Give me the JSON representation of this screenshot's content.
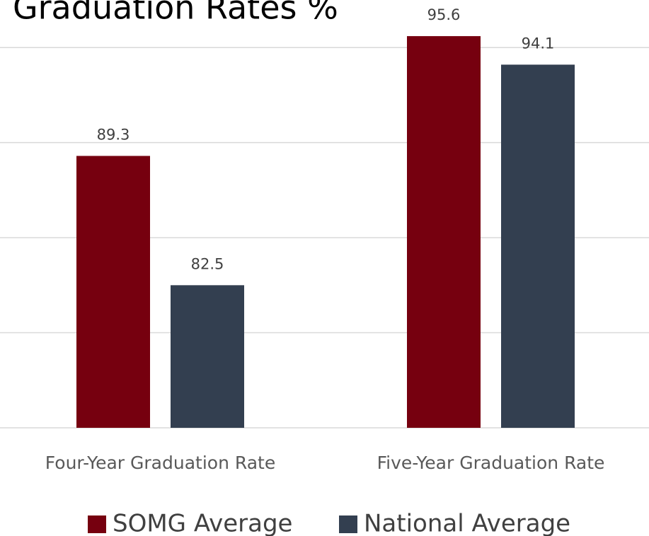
{
  "chart_data": {
    "type": "bar",
    "title": "Graduation Rates %",
    "categories": [
      "Four-Year Graduation Rate",
      "Five-Year Graduation Rate"
    ],
    "series": [
      {
        "name": "SOMG Average",
        "color": "#76000f",
        "values": [
          89.3,
          95.6
        ]
      },
      {
        "name": "National Average",
        "color": "#333f50",
        "values": [
          82.5,
          94.1
        ]
      }
    ],
    "ylim": [
      75,
      97.5
    ],
    "yticks": [
      75,
      80,
      85,
      90,
      95
    ],
    "grid": true,
    "legend": "bottom"
  }
}
